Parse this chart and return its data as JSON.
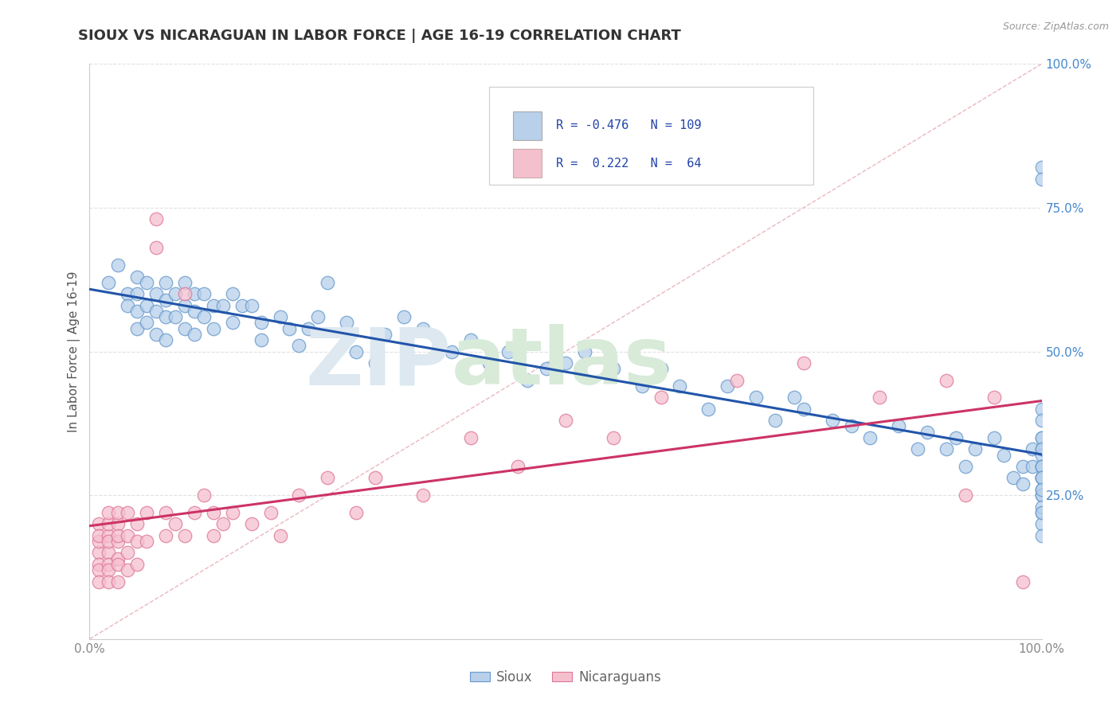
{
  "title": "SIOUX VS NICARAGUAN IN LABOR FORCE | AGE 16-19 CORRELATION CHART",
  "source_text": "Source: ZipAtlas.com",
  "ylabel": "In Labor Force | Age 16-19",
  "legend_labels": [
    "Sioux",
    "Nicaraguans"
  ],
  "sioux_R": -0.476,
  "sioux_N": 109,
  "nicaraguan_R": 0.222,
  "nicaraguan_N": 64,
  "sioux_color": "#b8d0ea",
  "sioux_edge_color": "#6699cc",
  "nicaraguan_color": "#f5c0ce",
  "nicaraguan_edge_color": "#dd7799",
  "sioux_line_color": "#2255aa",
  "nicaraguan_line_color": "#cc3366",
  "ref_line_color": "#e8b0b8",
  "background_color": "#ffffff",
  "grid_color": "#dddddd",
  "ytick_color": "#4488cc",
  "xtick_color": "#888888",
  "xlim": [
    0.0,
    1.0
  ],
  "ylim": [
    0.0,
    1.0
  ],
  "sioux_x": [
    0.02,
    0.03,
    0.04,
    0.04,
    0.05,
    0.05,
    0.05,
    0.05,
    0.06,
    0.06,
    0.06,
    0.07,
    0.07,
    0.07,
    0.08,
    0.08,
    0.08,
    0.08,
    0.09,
    0.09,
    0.1,
    0.1,
    0.1,
    0.11,
    0.11,
    0.11,
    0.12,
    0.12,
    0.13,
    0.13,
    0.14,
    0.15,
    0.15,
    0.16,
    0.17,
    0.18,
    0.18,
    0.2,
    0.21,
    0.22,
    0.23,
    0.24,
    0.25,
    0.27,
    0.28,
    0.3,
    0.31,
    0.33,
    0.35,
    0.38,
    0.4,
    0.42,
    0.44,
    0.46,
    0.48,
    0.5,
    0.52,
    0.55,
    0.58,
    0.6,
    0.62,
    0.65,
    0.67,
    0.7,
    0.72,
    0.74,
    0.75,
    0.78,
    0.8,
    0.82,
    0.85,
    0.87,
    0.88,
    0.9,
    0.91,
    0.92,
    0.93,
    0.95,
    0.96,
    0.97,
    0.98,
    0.98,
    0.99,
    0.99,
    1.0,
    1.0,
    1.0,
    1.0,
    1.0,
    1.0,
    1.0,
    1.0,
    1.0,
    1.0,
    1.0,
    1.0,
    1.0,
    1.0,
    1.0,
    1.0,
    1.0,
    1.0,
    1.0,
    1.0,
    1.0,
    1.0,
    1.0,
    1.0,
    1.0
  ],
  "sioux_y": [
    0.62,
    0.65,
    0.6,
    0.58,
    0.63,
    0.6,
    0.57,
    0.54,
    0.62,
    0.58,
    0.55,
    0.6,
    0.57,
    0.53,
    0.62,
    0.59,
    0.56,
    0.52,
    0.6,
    0.56,
    0.62,
    0.58,
    0.54,
    0.6,
    0.57,
    0.53,
    0.6,
    0.56,
    0.58,
    0.54,
    0.58,
    0.6,
    0.55,
    0.58,
    0.58,
    0.55,
    0.52,
    0.56,
    0.54,
    0.51,
    0.54,
    0.56,
    0.62,
    0.55,
    0.5,
    0.48,
    0.53,
    0.56,
    0.54,
    0.5,
    0.52,
    0.48,
    0.5,
    0.45,
    0.47,
    0.48,
    0.5,
    0.47,
    0.44,
    0.47,
    0.44,
    0.4,
    0.44,
    0.42,
    0.38,
    0.42,
    0.4,
    0.38,
    0.37,
    0.35,
    0.37,
    0.33,
    0.36,
    0.33,
    0.35,
    0.3,
    0.33,
    0.35,
    0.32,
    0.28,
    0.3,
    0.27,
    0.33,
    0.3,
    0.82,
    0.8,
    0.4,
    0.38,
    0.35,
    0.33,
    0.3,
    0.28,
    0.26,
    0.32,
    0.3,
    0.28,
    0.25,
    0.22,
    0.3,
    0.28,
    0.35,
    0.33,
    0.25,
    0.23,
    0.2,
    0.28,
    0.26,
    0.22,
    0.18
  ],
  "nicaraguan_x": [
    0.01,
    0.01,
    0.01,
    0.01,
    0.01,
    0.01,
    0.01,
    0.02,
    0.02,
    0.02,
    0.02,
    0.02,
    0.02,
    0.02,
    0.02,
    0.03,
    0.03,
    0.03,
    0.03,
    0.03,
    0.03,
    0.03,
    0.04,
    0.04,
    0.04,
    0.04,
    0.05,
    0.05,
    0.05,
    0.06,
    0.06,
    0.07,
    0.07,
    0.08,
    0.08,
    0.09,
    0.1,
    0.1,
    0.11,
    0.12,
    0.13,
    0.13,
    0.14,
    0.15,
    0.17,
    0.19,
    0.2,
    0.22,
    0.25,
    0.28,
    0.3,
    0.35,
    0.4,
    0.45,
    0.5,
    0.55,
    0.6,
    0.68,
    0.75,
    0.83,
    0.9,
    0.92,
    0.95,
    0.98
  ],
  "nicaraguan_y": [
    0.15,
    0.17,
    0.13,
    0.2,
    0.12,
    0.18,
    0.1,
    0.18,
    0.15,
    0.2,
    0.13,
    0.22,
    0.17,
    0.12,
    0.1,
    0.2,
    0.17,
    0.14,
    0.22,
    0.18,
    0.13,
    0.1,
    0.22,
    0.18,
    0.15,
    0.12,
    0.2,
    0.17,
    0.13,
    0.22,
    0.17,
    0.73,
    0.68,
    0.22,
    0.18,
    0.2,
    0.6,
    0.18,
    0.22,
    0.25,
    0.22,
    0.18,
    0.2,
    0.22,
    0.2,
    0.22,
    0.18,
    0.25,
    0.28,
    0.22,
    0.28,
    0.25,
    0.35,
    0.3,
    0.38,
    0.35,
    0.42,
    0.45,
    0.48,
    0.42,
    0.45,
    0.25,
    0.42,
    0.1
  ]
}
